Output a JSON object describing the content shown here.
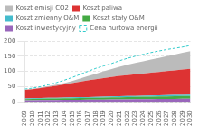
{
  "chart_data": {
    "type": "area",
    "x": [
      2009,
      2010,
      2011,
      2012,
      2013,
      2014,
      2015,
      2016,
      2017,
      2018,
      2019,
      2020,
      2021,
      2022,
      2023,
      2024,
      2025,
      2026,
      2027,
      2028,
      2029,
      2030
    ],
    "series": [
      {
        "name": "Koszt inwestycyjny",
        "type": "area",
        "color": "#9966BB",
        "values": [
          5,
          5.2,
          5.5,
          5.8,
          6.0,
          6.2,
          6.5,
          6.8,
          7.0,
          7.2,
          7.5,
          7.8,
          8.0,
          8.2,
          8.5,
          8.8,
          9.0,
          9.2,
          9.5,
          9.8,
          10.0,
          10.2
        ]
      },
      {
        "name": "Koszt stały O&M",
        "type": "area",
        "color": "#44AA44",
        "values": [
          4,
          4.2,
          4.5,
          4.8,
          5.0,
          5.2,
          5.5,
          5.8,
          6.0,
          6.3,
          6.5,
          6.8,
          7.0,
          7.3,
          7.5,
          7.8,
          8.0,
          8.3,
          8.5,
          8.8,
          9.0,
          9.3
        ]
      },
      {
        "name": "Koszt zmienny O&M",
        "type": "area",
        "color": "#44BBCC",
        "values": [
          2,
          2.1,
          2.2,
          2.3,
          2.4,
          2.5,
          2.6,
          2.7,
          2.8,
          2.9,
          3.0,
          3.1,
          3.2,
          3.4,
          3.5,
          3.6,
          3.7,
          3.8,
          3.9,
          4.0,
          4.1,
          4.2
        ]
      },
      {
        "name": "Koszt paliwa",
        "type": "area",
        "color": "#DD3333",
        "values": [
          28,
          30,
          33,
          36,
          39,
          43,
          47,
          51,
          55,
          58,
          61,
          64,
          67,
          69,
          71,
          73,
          75,
          77,
          79,
          81,
          83,
          85
        ]
      },
      {
        "name": "Koszt emisji CO2",
        "type": "area",
        "color": "#BBBBBB",
        "values": [
          1,
          1.5,
          2,
          3,
          4,
          5,
          7,
          10,
          14,
          18,
          22,
          26,
          30,
          34,
          37,
          40,
          43,
          46,
          49,
          52,
          55,
          58
        ]
      },
      {
        "name": "Cena hurtowa energii",
        "type": "line",
        "line_style": "dashed",
        "color": "#33CCCC",
        "values": [
          42,
          45,
          50,
          56,
          63,
          71,
          80,
          90,
          100,
          110,
          118,
          126,
          135,
          143,
          150,
          156,
          162,
          167,
          172,
          176,
          180,
          185
        ]
      }
    ],
    "xlim": [
      2009,
      2030
    ],
    "xticks": [
      2009,
      2010,
      2011,
      2012,
      2013,
      2014,
      2015,
      2016,
      2017,
      2018,
      2019,
      2020,
      2021,
      2022,
      2023,
      2024,
      2025,
      2026,
      2027,
      2028,
      2029,
      2030
    ],
    "ylim": [
      0,
      200
    ],
    "yticks": [
      0,
      50,
      100,
      150,
      200
    ],
    "grid": "y",
    "legend": "upper left",
    "stacked": true
  }
}
